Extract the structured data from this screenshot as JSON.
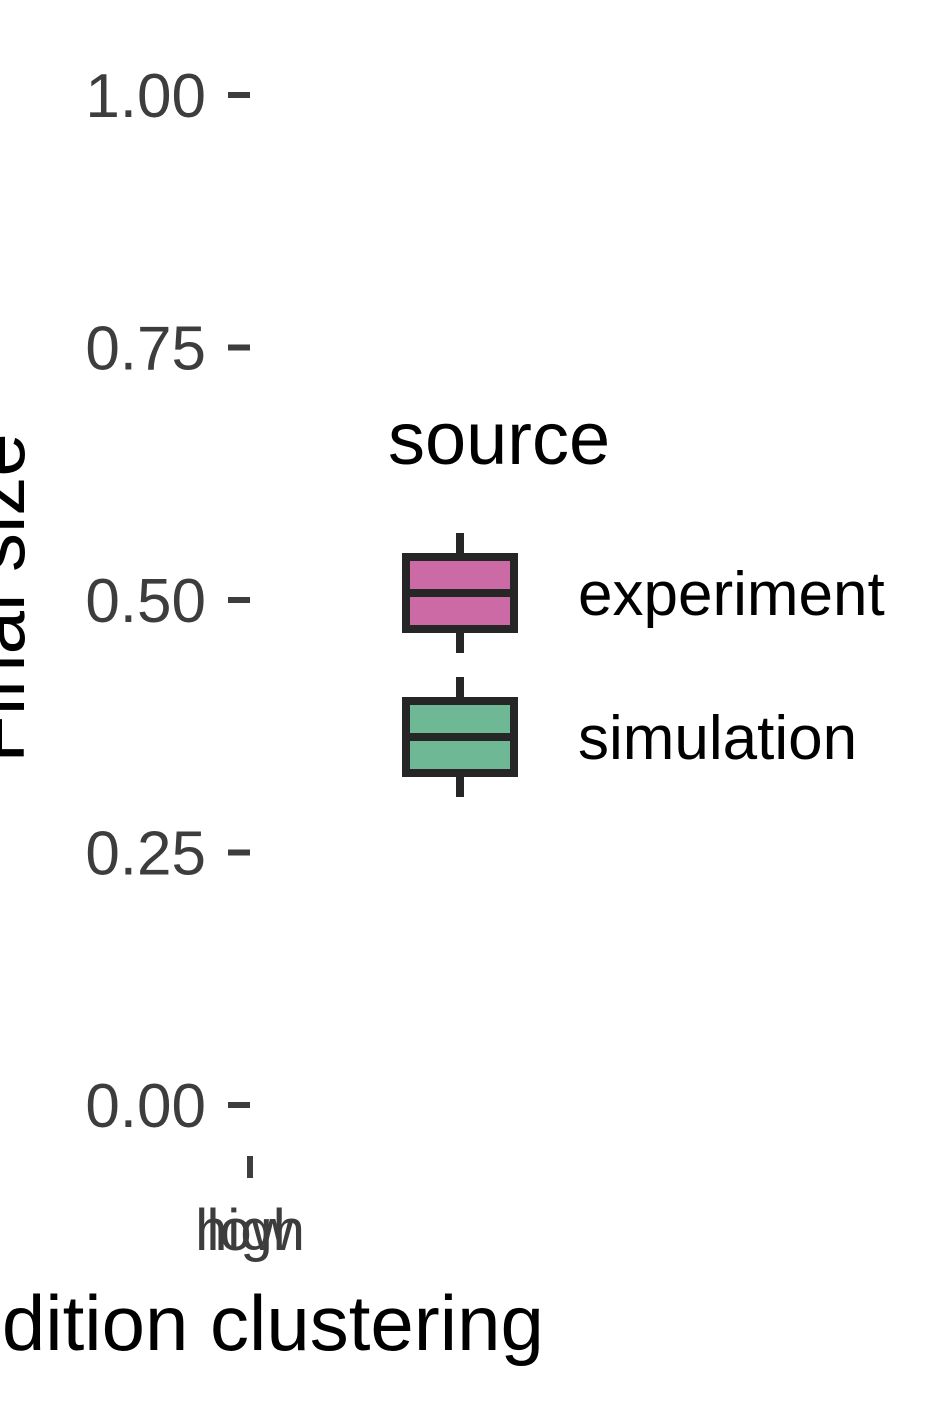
{
  "chart_data": {
    "type": "box",
    "title": "",
    "xlabel": "condition clustering",
    "ylabel": "Final size",
    "ylim": [
      0,
      1
    ],
    "yticks": [
      "0.00",
      "0.25",
      "0.50",
      "0.75",
      "1.00"
    ],
    "ytick_values": [
      0,
      0.25,
      0.5,
      0.75,
      1.0
    ],
    "categories": [
      "high",
      "low"
    ],
    "grid": false,
    "legend": {
      "title": "source",
      "placement": "right",
      "entries": [
        {
          "name": "experiment",
          "color": "#cc6aa5"
        },
        {
          "name": "simulation",
          "color": "#6fb896"
        }
      ]
    },
    "series": [
      {
        "name": "experiment",
        "values": []
      },
      {
        "name": "simulation",
        "values": []
      }
    ]
  },
  "colors": {
    "outline": "#262626",
    "tick_text": "#3d3d3d"
  }
}
